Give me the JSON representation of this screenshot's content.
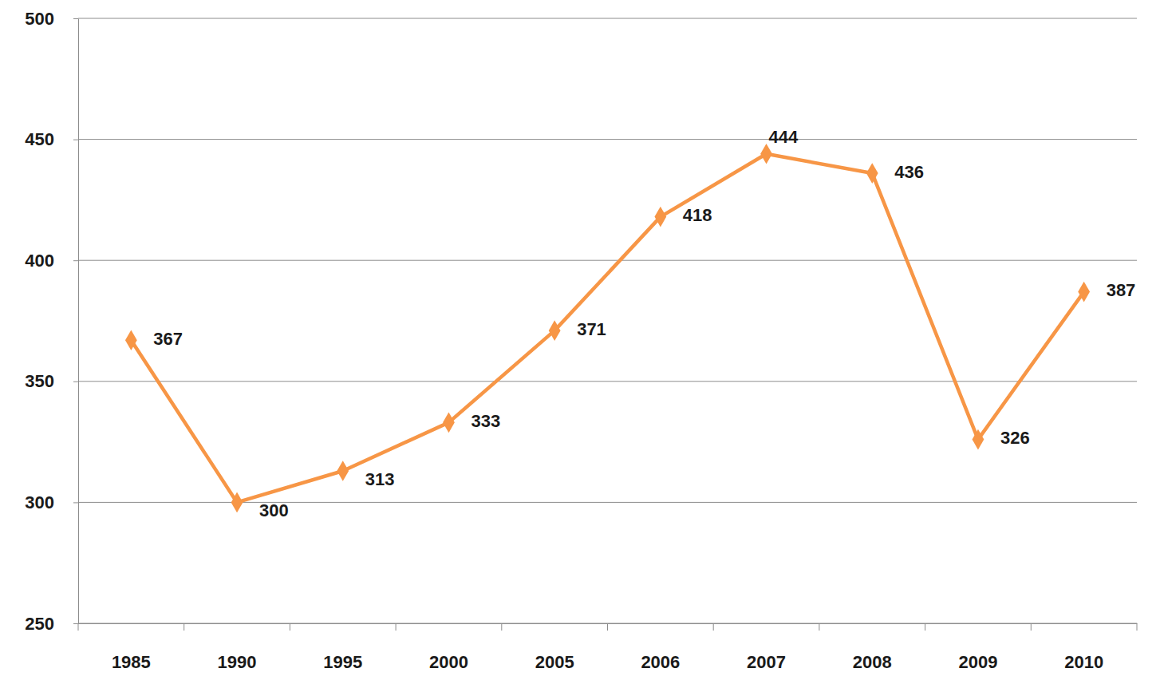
{
  "chart_data": {
    "type": "line",
    "categories": [
      "1985",
      "1990",
      "1995",
      "2000",
      "2005",
      "2006",
      "2007",
      "2008",
      "2009",
      "2010"
    ],
    "values": [
      367,
      300,
      313,
      333,
      371,
      418,
      444,
      436,
      326,
      387
    ],
    "color": "#f79646",
    "marker": "diamond",
    "ylim": [
      250,
      500
    ],
    "yticks": [
      250,
      300,
      350,
      400,
      450,
      500
    ],
    "grid": true,
    "data_labels": true
  }
}
